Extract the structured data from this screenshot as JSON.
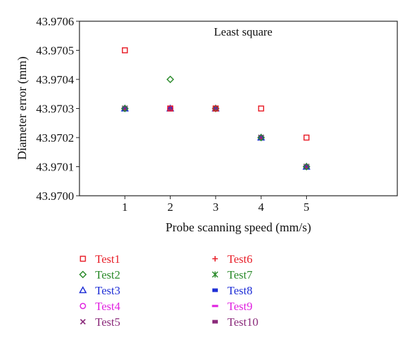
{
  "chart_data": {
    "type": "scatter",
    "title": "Least square",
    "xlabel": "Probe scanning speed (mm/s)",
    "ylabel": "Diameter error (mm)",
    "xlim": [
      0,
      7
    ],
    "ylim": [
      43.97,
      43.9706
    ],
    "x_ticks": [
      "1",
      "2",
      "3",
      "4",
      "5"
    ],
    "y_ticks": [
      "43.9700",
      "43.9701",
      "43.9702",
      "43.9703",
      "43.9704",
      "43.9705",
      "43.9706"
    ],
    "legend_placement": "bottom",
    "grid": false,
    "series": [
      {
        "name": "Test1",
        "color": "#e8202a",
        "marker": "square-open",
        "x": [
          1,
          2,
          3,
          4,
          5
        ],
        "y": [
          43.9705,
          43.9703,
          43.9703,
          43.9703,
          43.9702
        ]
      },
      {
        "name": "Test2",
        "color": "#2a8a2a",
        "marker": "diamond-open",
        "x": [
          1,
          2,
          3,
          4,
          5
        ],
        "y": [
          43.9703,
          43.9704,
          43.9703,
          43.9702,
          43.9701
        ]
      },
      {
        "name": "Test3",
        "color": "#1f2fd6",
        "marker": "triangle-open",
        "x": [
          1,
          2,
          3,
          4,
          5
        ],
        "y": [
          43.9703,
          43.9703,
          43.9703,
          43.9702,
          43.9701
        ]
      },
      {
        "name": "Test4",
        "color": "#e020e0",
        "marker": "circle-open",
        "x": [
          1,
          2,
          3,
          4,
          5
        ],
        "y": [
          43.9703,
          43.9703,
          43.9703,
          43.9702,
          43.9701
        ]
      },
      {
        "name": "Test5",
        "color": "#8a2a7a",
        "marker": "x",
        "x": [
          1,
          2,
          3,
          4,
          5
        ],
        "y": [
          43.9703,
          43.9703,
          43.9703,
          43.9702,
          43.9701
        ]
      },
      {
        "name": "Test6",
        "color": "#e8202a",
        "marker": "plus",
        "x": [
          1,
          2,
          3,
          4,
          5
        ],
        "y": [
          43.9703,
          43.9703,
          43.9703,
          43.9702,
          43.9701
        ]
      },
      {
        "name": "Test7",
        "color": "#2a8a2a",
        "marker": "asterisk",
        "x": [
          1,
          2,
          3,
          4,
          5
        ],
        "y": [
          43.9703,
          43.9703,
          43.9703,
          43.9702,
          43.9701
        ]
      },
      {
        "name": "Test8",
        "color": "#1f2fd6",
        "marker": "bar",
        "x": [
          1,
          2,
          3,
          4,
          5
        ],
        "y": [
          43.9703,
          43.9703,
          43.9703,
          43.9702,
          43.9701
        ]
      },
      {
        "name": "Test9",
        "color": "#e020e0",
        "marker": "dash",
        "x": [
          1,
          2,
          3,
          4,
          5
        ],
        "y": [
          43.9703,
          43.9703,
          43.9703,
          43.9702,
          43.9701
        ]
      },
      {
        "name": "Test10",
        "color": "#8a2a7a",
        "marker": "bar",
        "x": [
          1,
          2,
          3,
          4,
          5
        ],
        "y": [
          43.9703,
          43.9703,
          43.9703,
          43.9702,
          43.9701
        ]
      }
    ]
  }
}
